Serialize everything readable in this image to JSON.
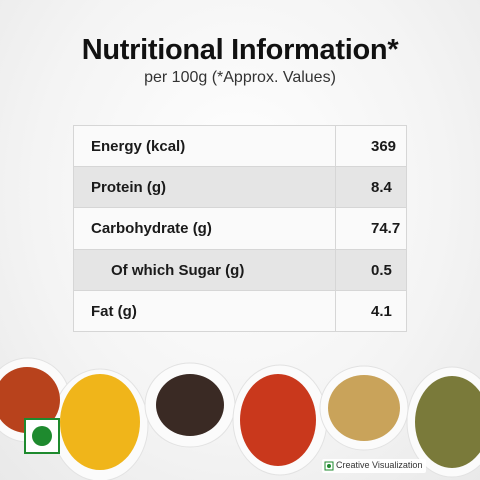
{
  "header": {
    "title": "Nutritional Information*",
    "subtitle": "per 100g (*Approx. Values)"
  },
  "table": {
    "rows": [
      [
        "Energy (kcal)",
        "369"
      ],
      [
        "Protein (g)",
        "8.4"
      ],
      [
        "Carbohydrate (g)",
        "74.7"
      ],
      [
        "Of which Sugar (g)",
        "0.5"
      ],
      [
        "Fat (g)",
        "4.1"
      ]
    ]
  },
  "footer": {
    "note": "Creative Visualization"
  }
}
